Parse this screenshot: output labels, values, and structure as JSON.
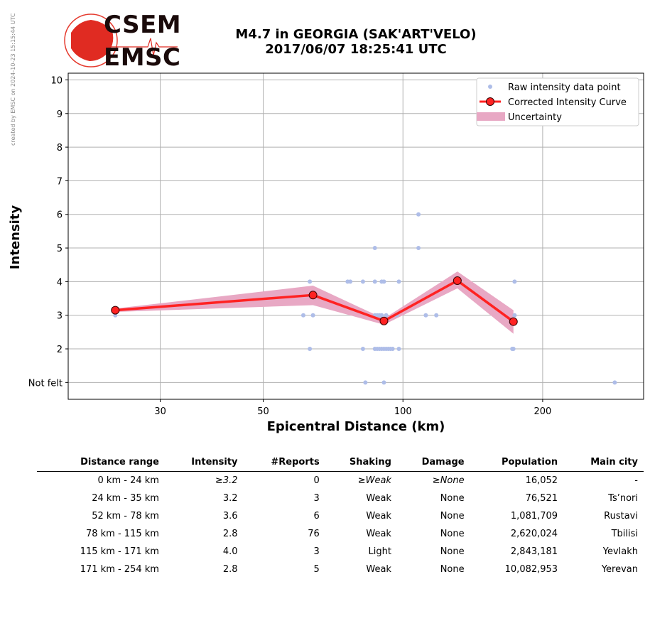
{
  "credit": "created by EMSC on 2024-10-23 15:15:44 UTC",
  "logo": {
    "top": "CSEM",
    "bottom": "EMSC"
  },
  "title": {
    "line1": "M4.7 in GEORGIA (SAK'ART'VELO)",
    "line2": "2017/06/07 18:25:41 UTC"
  },
  "chart_data": {
    "type": "scatter",
    "xlabel": "Epicentral Distance (km)",
    "ylabel": "Intensity",
    "x_scale": "log",
    "xlim": [
      19,
      330
    ],
    "ylim": [
      0.5,
      10.2
    ],
    "x_ticks": [
      30,
      50,
      100,
      200
    ],
    "x_tick_labels": [
      "30",
      "50",
      "100",
      "200"
    ],
    "y_ticks": [
      1,
      2,
      3,
      4,
      5,
      6,
      7,
      8,
      9,
      10
    ],
    "y_tick_labels": [
      "Not felt",
      "2",
      "3",
      "4",
      "5",
      "6",
      "7",
      "8",
      "9",
      "10"
    ],
    "grid": true,
    "legend_position": "top-right",
    "legend": [
      "Raw intensity data point",
      "Corrected Intensity Curve",
      "Uncertainty"
    ],
    "colors": {
      "raw": "#aebde8",
      "curve": "#ff2222",
      "uncertainty": "#e8a8c4",
      "marker_edge": "#330000"
    },
    "raw_points": [
      [
        24,
        3
      ],
      [
        61,
        3
      ],
      [
        64,
        3
      ],
      [
        63,
        4
      ],
      [
        63,
        2
      ],
      [
        76,
        4
      ],
      [
        77,
        4
      ],
      [
        82,
        4
      ],
      [
        82,
        2
      ],
      [
        83,
        1
      ],
      [
        87,
        5
      ],
      [
        87,
        4
      ],
      [
        87,
        3
      ],
      [
        87,
        2
      ],
      [
        88,
        3
      ],
      [
        88,
        2
      ],
      [
        89,
        3
      ],
      [
        89,
        2
      ],
      [
        90,
        4
      ],
      [
        90,
        3
      ],
      [
        90,
        2
      ],
      [
        91,
        4
      ],
      [
        91,
        2
      ],
      [
        91,
        1
      ],
      [
        92,
        3
      ],
      [
        92,
        2
      ],
      [
        93,
        2
      ],
      [
        94,
        2
      ],
      [
        95,
        2
      ],
      [
        97,
        3
      ],
      [
        98,
        4
      ],
      [
        98,
        2
      ],
      [
        108,
        6
      ],
      [
        108,
        5
      ],
      [
        112,
        3
      ],
      [
        118,
        3
      ],
      [
        172,
        2
      ],
      [
        173,
        2
      ],
      [
        174,
        4
      ],
      [
        174,
        3
      ],
      [
        286,
        1
      ]
    ],
    "curve": {
      "x": [
        24,
        64,
        91,
        131,
        173
      ],
      "y": [
        3.15,
        3.6,
        2.83,
        4.03,
        2.81
      ]
    },
    "uncertainty": {
      "x": [
        24,
        64,
        91,
        131,
        173
      ],
      "upper": [
        3.2,
        3.88,
        2.9,
        4.3,
        3.15
      ],
      "lower": [
        3.1,
        3.3,
        2.72,
        3.8,
        2.45
      ]
    }
  },
  "table": {
    "headers": [
      "Distance range",
      "Intensity",
      "#Reports",
      "Shaking",
      "Damage",
      "Population",
      "Main city"
    ],
    "rows": [
      {
        "range": "0 km -   24 km",
        "intensity": "≥3.2",
        "reports": "0",
        "shaking": "≥Weak",
        "damage": "≥None",
        "population": "16,052",
        "city": "-"
      },
      {
        "range": "24 km -   35 km",
        "intensity": "3.2",
        "reports": "3",
        "shaking": "Weak",
        "damage": "None",
        "population": "76,521",
        "city": "Ts’nori"
      },
      {
        "range": "52 km -   78 km",
        "intensity": "3.6",
        "reports": "6",
        "shaking": "Weak",
        "damage": "None",
        "population": "1,081,709",
        "city": "Rustavi"
      },
      {
        "range": "78 km -  115 km",
        "intensity": "2.8",
        "reports": "76",
        "shaking": "Weak",
        "damage": "None",
        "population": "2,620,024",
        "city": "Tbilisi"
      },
      {
        "range": "115 km -  171 km",
        "intensity": "4.0",
        "reports": "3",
        "shaking": "Light",
        "damage": "None",
        "population": "2,843,181",
        "city": "Yevlakh"
      },
      {
        "range": "171 km -  254 km",
        "intensity": "2.8",
        "reports": "5",
        "shaking": "Weak",
        "damage": "None",
        "population": "10,082,953",
        "city": "Yerevan"
      }
    ]
  }
}
